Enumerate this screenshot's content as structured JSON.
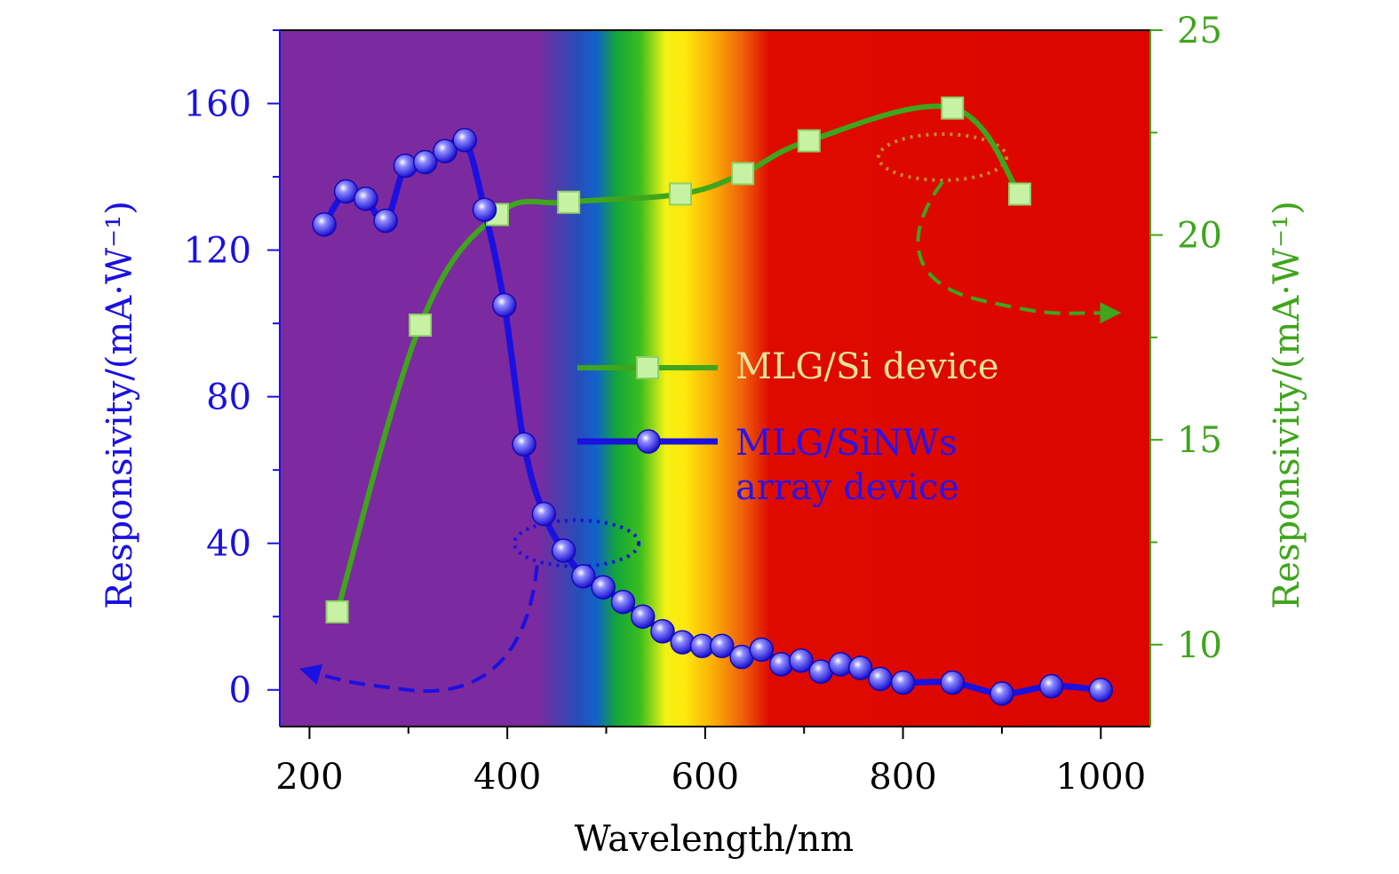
{
  "chart_data": {
    "type": "line",
    "title": "",
    "xlabel": "Wavelength/nm",
    "ylabel_left": "Responsivity/(mA·W⁻¹)",
    "ylabel_right": "Responsivity/(mA·W⁻¹)",
    "xlim": [
      170,
      1050
    ],
    "ylim_left": [
      -10,
      180
    ],
    "ylim_right": [
      8,
      25
    ],
    "x_ticks": [
      200,
      400,
      600,
      800,
      1000
    ],
    "x_tick_labels": [
      "200",
      "400",
      "600",
      "800",
      "1000"
    ],
    "y_left_ticks": [
      0,
      40,
      80,
      120,
      160
    ],
    "y_left_tick_labels": [
      "0",
      "40",
      "80",
      "120",
      "160"
    ],
    "y_right_ticks": [
      10,
      15,
      20,
      25
    ],
    "y_right_tick_labels": [
      "10",
      "15",
      "20",
      "25"
    ],
    "colors": {
      "blue": "#1a10e0",
      "green": "#3fa51c",
      "marker_green": "#c7f2a4",
      "legend_green_text": "#e8e29a",
      "legend_blue_text": "#2a14e8"
    },
    "series": [
      {
        "name": "MLG/SiNWs array device",
        "legend_label_line1": "MLG/SiNWs",
        "legend_label_line2": "array device",
        "axis": "left",
        "marker": "circle",
        "x": [
          215,
          237,
          257,
          277,
          297,
          317,
          337,
          357,
          377,
          397,
          417,
          437,
          457,
          477,
          497,
          517,
          537,
          557,
          577,
          597,
          617,
          637,
          657,
          677,
          697,
          717,
          737,
          757,
          777,
          800,
          850,
          900,
          950,
          1000
        ],
        "y": [
          127,
          136,
          134,
          128,
          143,
          144,
          147,
          150,
          131,
          105,
          67,
          48,
          38,
          31,
          28,
          24,
          20,
          16,
          13,
          12,
          12,
          9,
          11,
          7,
          8,
          5,
          7,
          6,
          3,
          2,
          2,
          -1,
          1,
          0
        ]
      },
      {
        "name": "MLG/Si device",
        "legend_label": "MLG/Si device",
        "axis": "right",
        "marker": "square",
        "x": [
          228,
          312,
          390,
          462,
          575,
          638,
          705,
          850,
          918
        ],
        "y": [
          10.8,
          17.8,
          20.5,
          20.8,
          21.0,
          21.5,
          22.3,
          23.1,
          21.0
        ]
      }
    ],
    "annotations": [
      {
        "type": "ellipse",
        "axis": "left",
        "series": "MLG/SiNWs array device",
        "arrow_direction": "left"
      },
      {
        "type": "ellipse",
        "axis": "right",
        "series": "MLG/Si device",
        "arrow_direction": "right"
      }
    ],
    "background": {
      "type": "spectrum",
      "stops_nm": [
        {
          "nm": 170,
          "color": "#7d2aa0"
        },
        {
          "nm": 430,
          "color": "#7b2aa0"
        },
        {
          "nm": 470,
          "color": "#2a4bb8"
        },
        {
          "nm": 490,
          "color": "#1063c9"
        },
        {
          "nm": 510,
          "color": "#12a53a"
        },
        {
          "nm": 535,
          "color": "#3dbf1c"
        },
        {
          "nm": 560,
          "color": "#f3f214"
        },
        {
          "nm": 580,
          "color": "#fde80c"
        },
        {
          "nm": 610,
          "color": "#fbaa07"
        },
        {
          "nm": 640,
          "color": "#ee5a08"
        },
        {
          "nm": 665,
          "color": "#de0a00"
        },
        {
          "nm": 1050,
          "color": "#dc0500"
        }
      ]
    }
  }
}
